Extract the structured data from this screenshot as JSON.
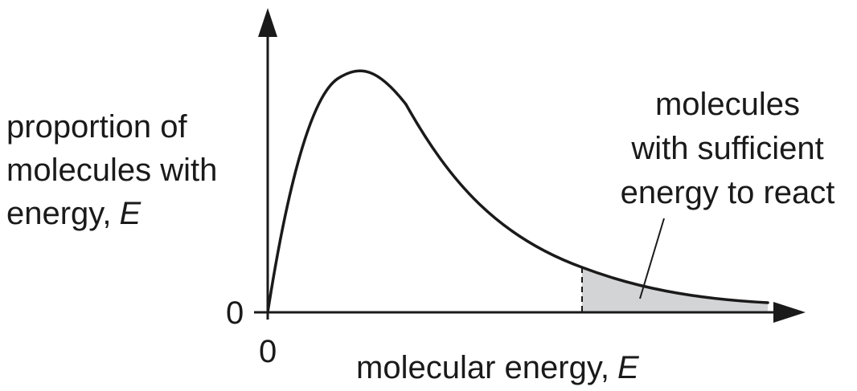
{
  "y_axis": {
    "label_line1": "proportion of",
    "label_line2": "molecules with",
    "label_line3": "energy,",
    "label_var": "E",
    "zero": "0"
  },
  "x_axis": {
    "label": "molecular energy,",
    "label_var": "E",
    "zero": "0"
  },
  "annotation": {
    "line1": "molecules",
    "line2": "with sufficient",
    "line3": "energy to react"
  },
  "colors": {
    "stroke": "#1a1a1a",
    "shaded_region": "#d3d4d6"
  }
}
